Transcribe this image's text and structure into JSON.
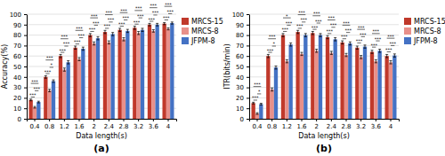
{
  "chart_data": [
    {
      "type": "bar",
      "title": "(a)",
      "xlabel": "Data length(s)",
      "ylabel": "Accuracy(%)",
      "categories": [
        "0.4",
        "0.8",
        "1.2",
        "1.6",
        "2",
        "2.4",
        "2.8",
        "3.2",
        "3.6",
        "4"
      ],
      "series": [
        {
          "name": "MRCS-15",
          "color": "#C0392B",
          "values": [
            18.0,
            40.0,
            60.0,
            68.0,
            80.0,
            83.0,
            85.0,
            87.0,
            90.0,
            91.0
          ],
          "error": [
            0.8,
            1.2,
            1.5,
            1.5,
            1.5,
            1.5,
            1.5,
            1.5,
            1.2,
            1.0
          ]
        },
        {
          "name": "MRCS-8",
          "color": "#E8908A",
          "values": [
            11.0,
            27.0,
            47.0,
            57.0,
            72.0,
            73.0,
            76.0,
            82.0,
            84.0,
            86.0
          ],
          "error": [
            0.8,
            1.2,
            1.5,
            1.5,
            1.5,
            1.5,
            1.5,
            1.5,
            1.2,
            1.0
          ]
        },
        {
          "name": "JFPM-8",
          "color": "#4472C4",
          "values": [
            16.0,
            36.0,
            54.0,
            67.0,
            77.0,
            81.0,
            84.0,
            85.0,
            90.0,
            91.5
          ],
          "error": [
            0.8,
            1.2,
            1.5,
            1.5,
            1.5,
            1.5,
            1.5,
            1.5,
            1.2,
            1.0
          ]
        }
      ],
      "annotations": {
        "low": [
          "***",
          "***",
          "***",
          "***",
          "***",
          "***",
          "***",
          "***",
          "***",
          "***"
        ],
        "mid": [
          "***",
          "*",
          "***",
          "***",
          "***",
          "***",
          "***",
          "***",
          "***",
          "***"
        ],
        "top": [
          "***",
          "***",
          "***",
          "***",
          "***",
          "***",
          "***",
          "***",
          "***",
          "***"
        ]
      },
      "ylim": [
        0,
        100
      ],
      "yticks": [
        0,
        10,
        20,
        30,
        40,
        50,
        60,
        70,
        80,
        90,
        100
      ],
      "grid": true,
      "legend": "right"
    },
    {
      "type": "bar",
      "title": "(b)",
      "xlabel": "Data length(s)",
      "ylabel": "ITR(bits/min)",
      "categories": [
        "0.4",
        "0.8",
        "1.2",
        "1.6",
        "2",
        "2.4",
        "2.8",
        "3.2",
        "3.6",
        "4"
      ],
      "series": [
        {
          "name": "MRCS-15",
          "color": "#C0392B",
          "values": [
            15.0,
            60.0,
            80.0,
            83.0,
            82.0,
            78.0,
            73.0,
            68.0,
            64.0,
            60.0
          ],
          "error": [
            0.8,
            1.5,
            1.5,
            1.5,
            1.5,
            1.5,
            1.5,
            1.5,
            1.5,
            1.5
          ]
        },
        {
          "name": "MRCS-8",
          "color": "#E8908A",
          "values": [
            5.0,
            28.0,
            55.0,
            62.0,
            65.0,
            63.0,
            61.0,
            59.0,
            55.0,
            54.0
          ],
          "error": [
            0.8,
            1.5,
            1.5,
            1.5,
            1.5,
            1.5,
            1.5,
            1.5,
            1.5,
            1.5
          ]
        },
        {
          "name": "JFPM-8",
          "color": "#4472C4",
          "values": [
            14.0,
            49.0,
            71.0,
            80.0,
            80.0,
            76.0,
            72.0,
            69.0,
            65.0,
            60.5
          ],
          "error": [
            0.8,
            1.5,
            1.5,
            1.5,
            1.5,
            1.5,
            1.5,
            1.5,
            1.5,
            1.5
          ]
        }
      ],
      "annotations": {
        "low": [
          "***",
          "***",
          "***",
          "***",
          "***",
          "***",
          "***",
          "***",
          "***",
          "***"
        ],
        "mid": [
          "*",
          "*",
          "***",
          "***",
          "***",
          "***",
          "***",
          "***",
          "***",
          "***"
        ],
        "top": [
          "***",
          "***",
          "*",
          "***",
          "***",
          "***",
          "***",
          "***",
          "***",
          "***"
        ]
      },
      "ylim": [
        0,
        100
      ],
      "yticks": [
        0,
        10,
        20,
        30,
        40,
        50,
        60,
        70,
        80,
        90,
        100
      ],
      "grid": true,
      "legend": "right"
    }
  ]
}
